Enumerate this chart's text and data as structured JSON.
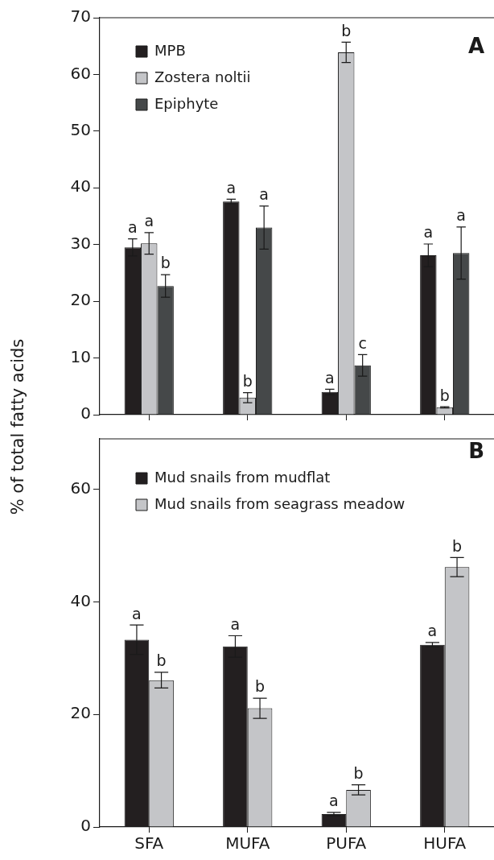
{
  "chart_data": [
    {
      "type": "bar",
      "title": "A",
      "ylabel": "% of total fatty acids",
      "categories": [
        null,
        null,
        null,
        null
      ],
      "tick_labels": "y",
      "legend": "top left",
      "grid": false,
      "ylim": [
        0,
        70
      ],
      "yticks": [
        0,
        10,
        20,
        30,
        40,
        50,
        60,
        70
      ],
      "series": [
        {
          "name": "MPB",
          "color": "#231f20",
          "values": [
            29.5,
            37.6,
            4.0,
            28.1
          ],
          "errors": [
            1.5,
            0.4,
            0.5,
            2.0
          ]
        },
        {
          "name": "Zostera noltii",
          "color": "#c4c5c8",
          "values": [
            30.2,
            3.0,
            63.9,
            1.3
          ],
          "errors": [
            1.9,
            0.9,
            1.8,
            0.1
          ]
        },
        {
          "name": "Epiphyte",
          "color": "#454849",
          "values": [
            22.7,
            33.0,
            8.7,
            28.5
          ],
          "errors": [
            2.0,
            3.8,
            1.9,
            4.6
          ]
        }
      ],
      "annotations": [
        "a",
        "a",
        "b",
        "a",
        "b",
        "a",
        "a",
        "b",
        "c",
        "a",
        "b",
        "a"
      ]
    },
    {
      "type": "bar",
      "title": "B",
      "categories": [
        "SFA",
        "MUFA",
        "PUFA",
        "HUFA"
      ],
      "legend": "top left",
      "grid": false,
      "ylim": [
        0,
        69
      ],
      "yticks": [
        0,
        20,
        40,
        60
      ],
      "series": [
        {
          "name": "Mud snails from mudflat",
          "color": "#231f20",
          "values": [
            33.3,
            32.1,
            2.3,
            32.4
          ],
          "errors": [
            2.6,
            1.9,
            0.3,
            0.4
          ]
        },
        {
          "name": "Mud snails from seagrass meadow",
          "color": "#c4c5c8",
          "values": [
            26.1,
            21.1,
            6.6,
            46.2
          ],
          "errors": [
            1.4,
            1.8,
            0.9,
            1.7
          ]
        }
      ],
      "annotations": [
        {
          "text": "a",
          "x": "SFA",
          "y": 33.3
        },
        {
          "text": "b",
          "x": "SFA",
          "y": 26.1
        },
        {
          "text": "a",
          "x": "MUFA",
          "y": 32.1
        },
        {
          "text": "b",
          "x": "MUFA",
          "y": 21.1
        },
        {
          "text": "a",
          "x": "PUFA",
          "y": 2.3
        },
        {
          "text": "b",
          "x": "PUFA",
          "y": 6.6
        },
        {
          "text": "a",
          "x": "HUFA",
          "y": 32.4
        },
        {
          "text": "b",
          "x": "HUFA",
          "y": 46.2
        }
      ]
    }
  ]
}
